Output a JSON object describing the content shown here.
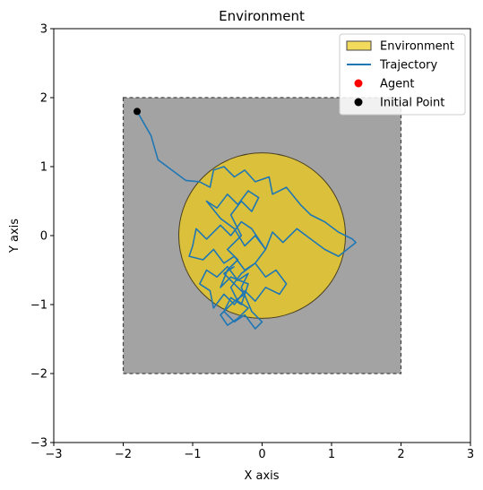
{
  "chart_data": {
    "type": "scatter",
    "title": "Environment",
    "xlabel": "X axis",
    "ylabel": "Y axis",
    "xlim": [
      -3,
      3
    ],
    "ylim": [
      -3,
      3
    ],
    "xticks": [
      -3,
      -2,
      -1,
      0,
      1,
      2,
      3
    ],
    "yticks": [
      -3,
      -2,
      -1,
      0,
      1,
      2,
      3
    ],
    "tick_labels_x": [
      "−3",
      "−2",
      "−1",
      "0",
      "1",
      "2",
      "3"
    ],
    "tick_labels_y": [
      "−3",
      "−2",
      "−1",
      "0",
      "1",
      "2",
      "3"
    ],
    "grid": false,
    "legend_position": "top-right",
    "boundary": {
      "x_min": -2,
      "x_max": 2,
      "y_min": -2,
      "y_max": 2,
      "fill": "#a3a3a3",
      "edge": "#444444"
    },
    "environment_circle": {
      "cx": 0,
      "cy": 0,
      "r": 1.2,
      "fill": "#dbc13b",
      "edge": "#4a4020"
    },
    "initial_point": [
      -1.8,
      1.8
    ],
    "trajectory_color": "#1f77b4",
    "trajectory": [
      [
        -1.8,
        1.8
      ],
      [
        -1.6,
        1.45
      ],
      [
        -1.5,
        1.1
      ],
      [
        -1.3,
        0.95
      ],
      [
        -1.1,
        0.8
      ],
      [
        -0.9,
        0.78
      ],
      [
        -0.75,
        0.7
      ],
      [
        -0.7,
        0.95
      ],
      [
        -0.55,
        1.0
      ],
      [
        -0.4,
        0.85
      ],
      [
        -0.25,
        0.95
      ],
      [
        -0.1,
        0.78
      ],
      [
        0.1,
        0.85
      ],
      [
        0.15,
        0.6
      ],
      [
        0.35,
        0.7
      ],
      [
        0.55,
        0.45
      ],
      [
        0.7,
        0.3
      ],
      [
        0.9,
        0.2
      ],
      [
        1.1,
        0.05
      ],
      [
        1.3,
        -0.05
      ],
      [
        1.35,
        -0.1
      ],
      [
        1.1,
        -0.3
      ],
      [
        0.9,
        -0.2
      ],
      [
        0.7,
        -0.05
      ],
      [
        0.5,
        0.1
      ],
      [
        0.3,
        -0.1
      ],
      [
        0.15,
        0.05
      ],
      [
        0.05,
        -0.2
      ],
      [
        -0.15,
        0.1
      ],
      [
        -0.3,
        0.2
      ],
      [
        -0.45,
        0.0
      ],
      [
        -0.6,
        0.15
      ],
      [
        -0.8,
        -0.05
      ],
      [
        -0.95,
        0.1
      ],
      [
        -1.0,
        -0.15
      ],
      [
        -1.05,
        -0.3
      ],
      [
        -0.85,
        -0.35
      ],
      [
        -0.7,
        -0.2
      ],
      [
        -0.55,
        -0.4
      ],
      [
        -0.4,
        -0.3
      ],
      [
        -0.25,
        -0.5
      ],
      [
        -0.1,
        -0.4
      ],
      [
        0.05,
        -0.6
      ],
      [
        0.2,
        -0.5
      ],
      [
        0.35,
        -0.7
      ],
      [
        0.25,
        -0.85
      ],
      [
        0.05,
        -0.75
      ],
      [
        -0.1,
        -0.95
      ],
      [
        -0.25,
        -0.8
      ],
      [
        -0.4,
        -1.0
      ],
      [
        -0.55,
        -0.85
      ],
      [
        -0.7,
        -1.05
      ],
      [
        -0.75,
        -0.8
      ],
      [
        -0.9,
        -0.7
      ],
      [
        -0.8,
        -0.5
      ],
      [
        -0.65,
        -0.6
      ],
      [
        -0.5,
        -0.45
      ],
      [
        -0.35,
        -0.65
      ],
      [
        -0.2,
        -0.55
      ],
      [
        -0.3,
        -0.75
      ],
      [
        -0.15,
        -1.1
      ],
      [
        0.0,
        -1.25
      ],
      [
        -0.1,
        -1.35
      ],
      [
        -0.25,
        -1.15
      ],
      [
        -0.4,
        -1.25
      ],
      [
        -0.55,
        -1.1
      ],
      [
        -0.45,
        -0.9
      ],
      [
        -0.3,
        -1.0
      ],
      [
        -0.2,
        -0.7
      ],
      [
        -0.45,
        -0.6
      ],
      [
        -0.6,
        -0.75
      ],
      [
        -0.5,
        -0.5
      ],
      [
        -0.35,
        -0.35
      ],
      [
        -0.5,
        -0.2
      ],
      [
        -0.3,
        0.0
      ],
      [
        -0.45,
        0.3
      ],
      [
        -0.3,
        0.5
      ],
      [
        -0.15,
        0.35
      ],
      [
        -0.05,
        0.55
      ],
      [
        -0.2,
        0.65
      ],
      [
        -0.35,
        0.45
      ],
      [
        -0.5,
        0.6
      ],
      [
        -0.65,
        0.4
      ],
      [
        -0.8,
        0.5
      ],
      [
        -0.6,
        0.25
      ],
      [
        -0.4,
        0.1
      ],
      [
        -0.25,
        -0.15
      ],
      [
        -0.1,
        0.0
      ],
      [
        0.05,
        -0.2
      ],
      [
        -0.1,
        -0.4
      ],
      [
        -0.3,
        -0.55
      ],
      [
        -0.45,
        -0.75
      ],
      [
        -0.35,
        -0.95
      ],
      [
        -0.2,
        -1.05
      ],
      [
        -0.35,
        -1.2
      ],
      [
        -0.5,
        -1.3
      ],
      [
        -0.6,
        -1.15
      ],
      [
        -0.4,
        -0.95
      ],
      [
        -0.25,
        -0.85
      ],
      [
        -0.4,
        -0.7
      ],
      [
        -0.55,
        -0.55
      ],
      [
        -0.4,
        -0.45
      ]
    ],
    "legend": [
      {
        "label": "Environment",
        "kind": "patch",
        "color": "#f2da5c",
        "edge": "#444444"
      },
      {
        "label": "Trajectory",
        "kind": "line",
        "color": "#1f77b4"
      },
      {
        "label": "Agent",
        "kind": "dot",
        "color": "#ff0000"
      },
      {
        "label": "Initial Point",
        "kind": "dot",
        "color": "#000000"
      }
    ]
  }
}
